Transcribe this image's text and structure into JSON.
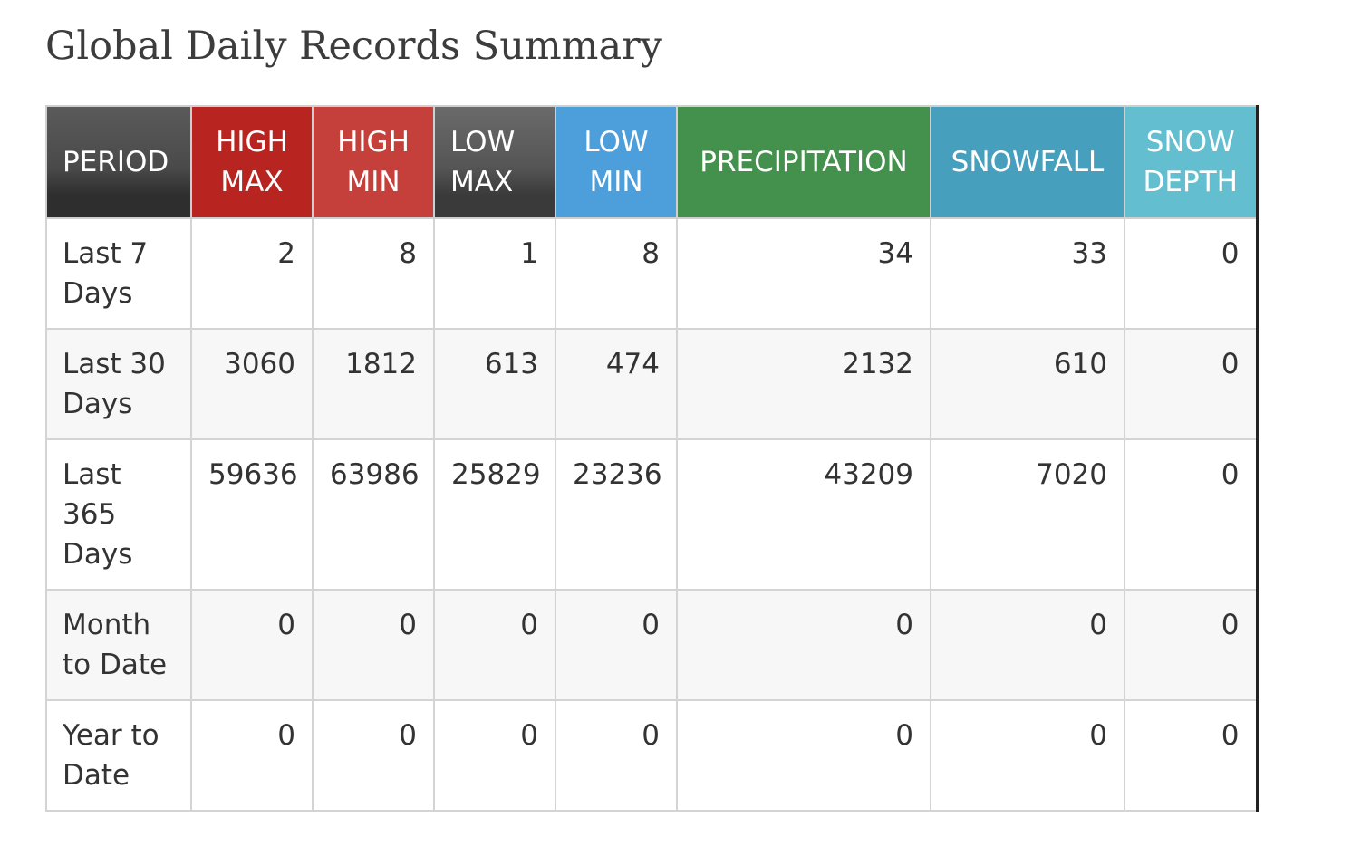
{
  "page": {
    "title": "Global Daily Records Summary"
  },
  "table": {
    "headers": [
      {
        "key": "period",
        "lines": [
          "PERIOD"
        ],
        "color": "#4a4a4a",
        "gradient_top": "#5a5a5a",
        "gradient_bottom": "#2e2e2e"
      },
      {
        "key": "high_max",
        "lines": [
          "HIGH",
          "MAX"
        ],
        "color": "#b8241f"
      },
      {
        "key": "high_min",
        "lines": [
          "HIGH",
          "MIN"
        ],
        "color": "#c5403b"
      },
      {
        "key": "low_max",
        "lines": [
          "LOW",
          "MAX"
        ],
        "color": "#555555",
        "gradient_top": "#6a6a6a",
        "gradient_bottom": "#3a3a3a"
      },
      {
        "key": "low_min",
        "lines": [
          "LOW",
          "MIN"
        ],
        "color": "#4c9fda"
      },
      {
        "key": "precipitation",
        "lines": [
          "PRECIPITATION"
        ],
        "color": "#43914d"
      },
      {
        "key": "snowfall",
        "lines": [
          "SNOWFALL"
        ],
        "color": "#459fbd"
      },
      {
        "key": "snow_depth",
        "lines": [
          "SNOW",
          "DEPTH"
        ],
        "color": "#63bfcf"
      }
    ],
    "rows": [
      {
        "period": "Last 7 Days",
        "values": [
          "2",
          "8",
          "1",
          "8",
          "34",
          "33",
          "0"
        ]
      },
      {
        "period": "Last 30 Days",
        "values": [
          "3060",
          "1812",
          "613",
          "474",
          "2132",
          "610",
          "0"
        ]
      },
      {
        "period": "Last 365 Days",
        "values": [
          "59636",
          "63986",
          "25829",
          "23236",
          "43209",
          "7020",
          "0"
        ]
      },
      {
        "period": "Month to Date",
        "values": [
          "0",
          "0",
          "0",
          "0",
          "0",
          "0",
          "0"
        ]
      },
      {
        "period": "Year to Date",
        "values": [
          "0",
          "0",
          "0",
          "0",
          "0",
          "0",
          "0"
        ]
      }
    ]
  }
}
